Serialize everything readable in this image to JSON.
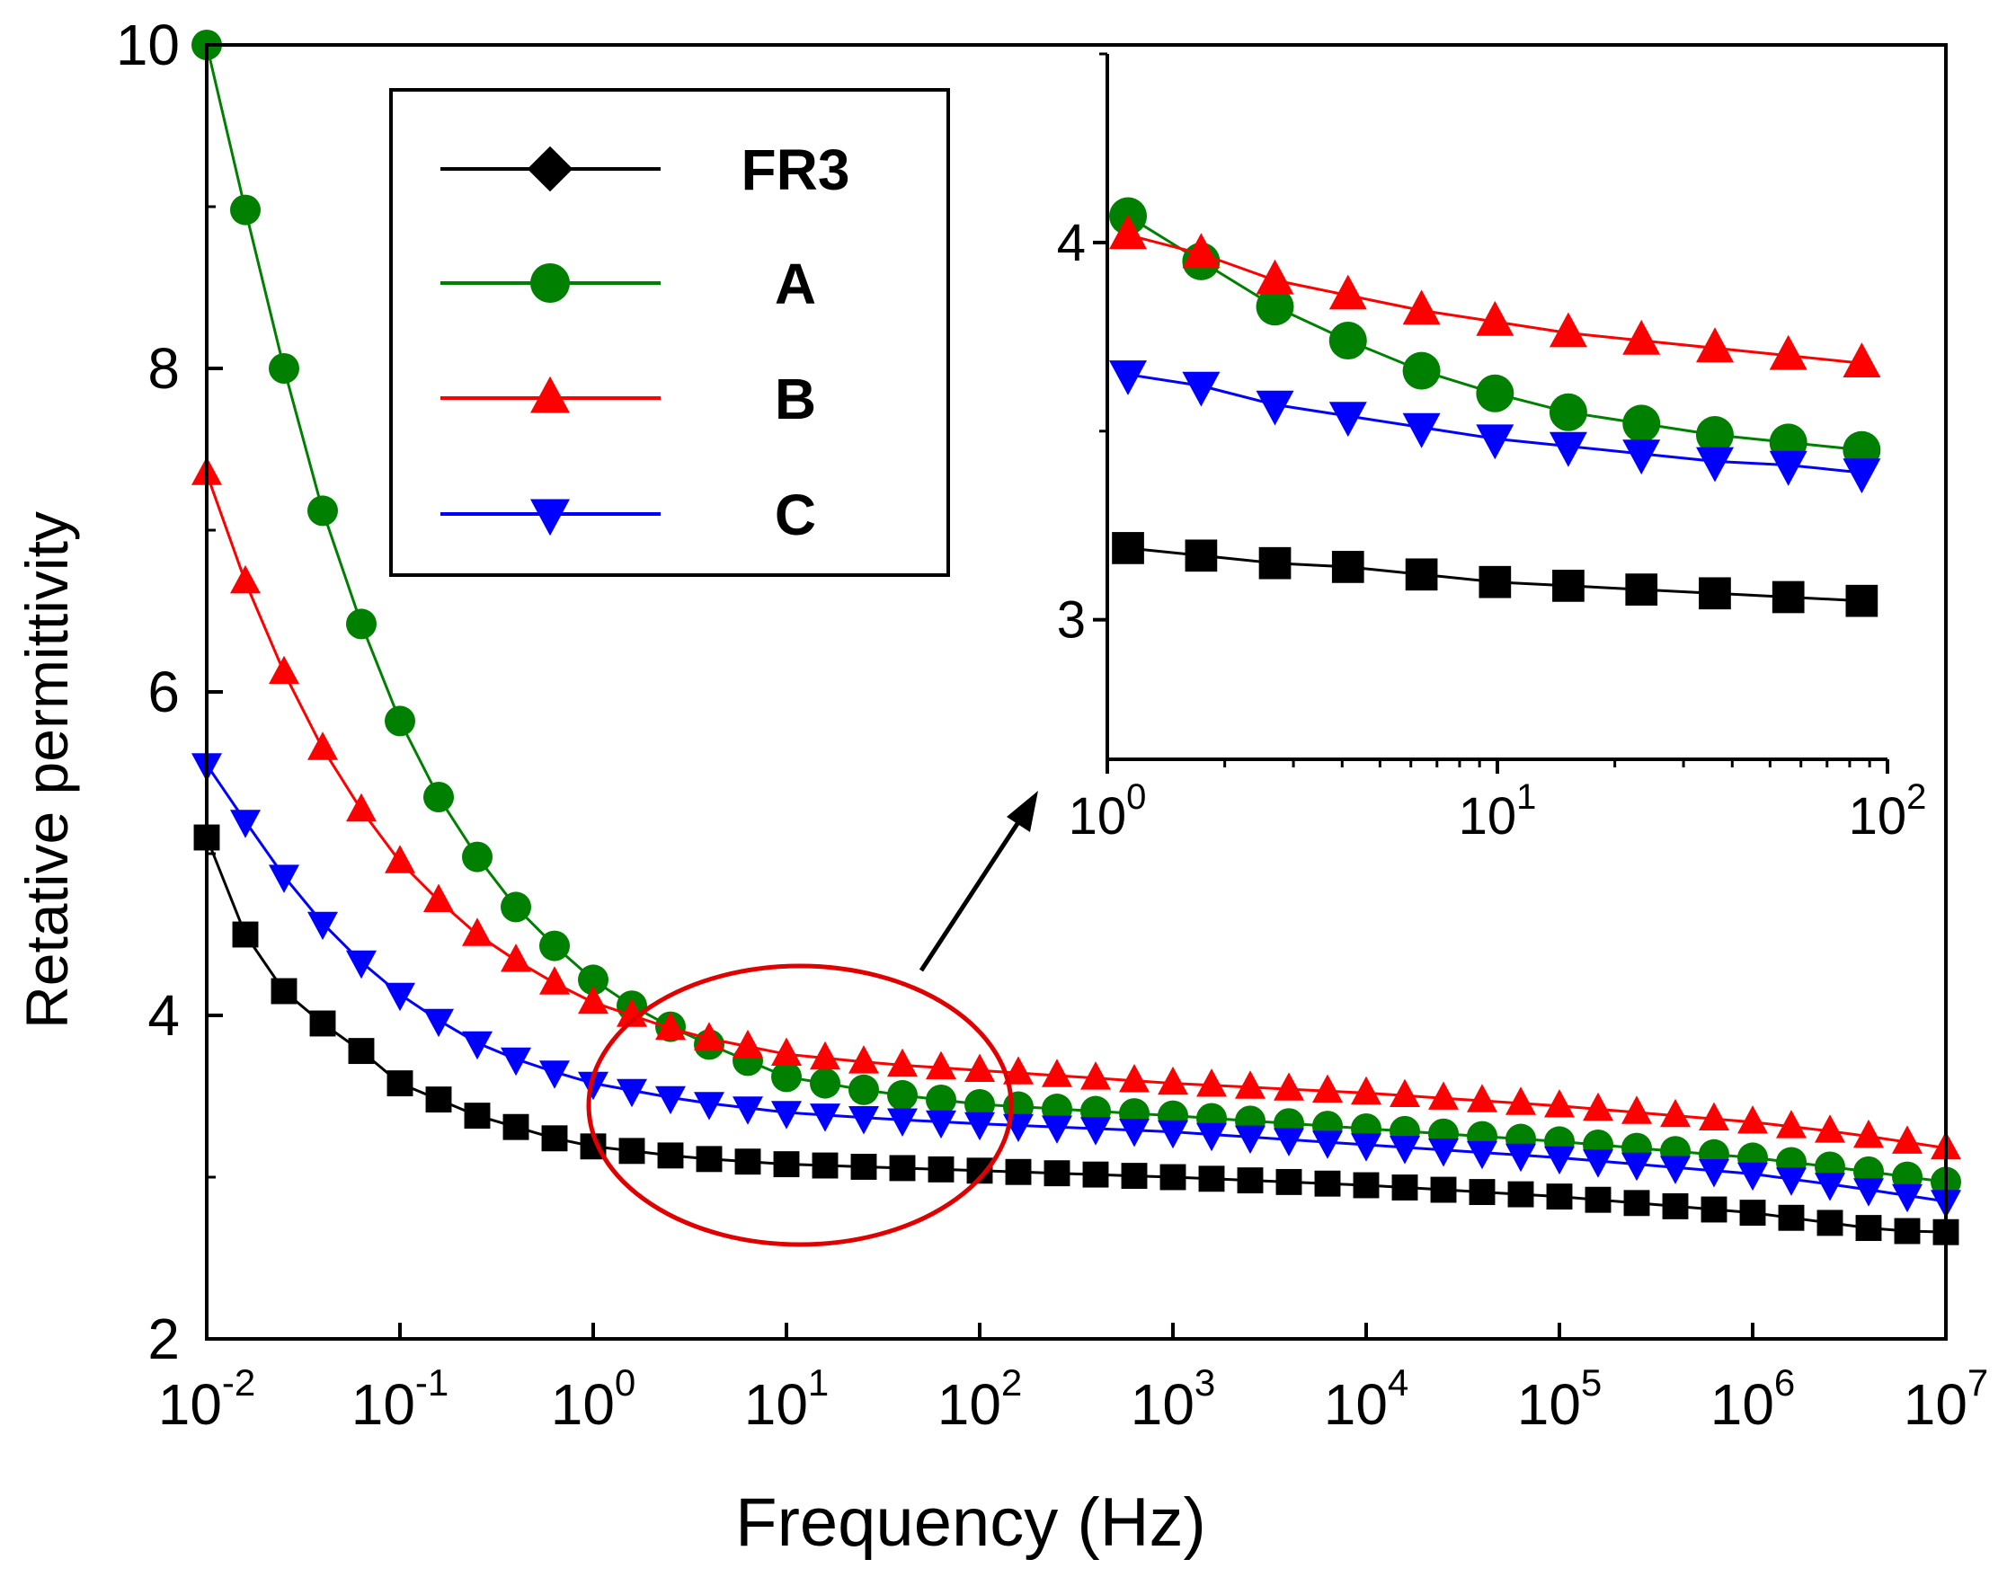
{
  "chart_data": [
    {
      "type": "line",
      "title": "",
      "xlabel": "Frequency (Hz)",
      "ylabel": "Retative permittivity",
      "xscale": "log",
      "xlim": [
        0.01,
        10000000
      ],
      "ylim": [
        2,
        10
      ],
      "yticks": [
        {
          "value": 2,
          "label": "2"
        },
        {
          "value": 4,
          "label": "4"
        },
        {
          "value": 6,
          "label": "6"
        },
        {
          "value": 8,
          "label": "8"
        },
        {
          "value": 10,
          "label": "10"
        }
      ],
      "xticks": [
        {
          "value": 0.01,
          "base": "10",
          "exp": "-2"
        },
        {
          "value": 0.1,
          "base": "10",
          "exp": "-1"
        },
        {
          "value": 1,
          "base": "10",
          "exp": "0"
        },
        {
          "value": 10,
          "base": "10",
          "exp": "1"
        },
        {
          "value": 100,
          "base": "10",
          "exp": "2"
        },
        {
          "value": 1000,
          "base": "10",
          "exp": "3"
        },
        {
          "value": 10000,
          "base": "10",
          "exp": "4"
        },
        {
          "value": 100000,
          "base": "10",
          "exp": "5"
        },
        {
          "value": 1000000,
          "base": "10",
          "exp": "6"
        },
        {
          "value": 10000000,
          "base": "10",
          "exp": "7"
        }
      ],
      "legend_position": "top-left",
      "series": [
        {
          "name": "FR3",
          "color": "#000000",
          "legend_marker": "diamond",
          "marker": "square",
          "anchors": [
            [
              -2,
              5.1
            ],
            [
              -1.8,
              4.5
            ],
            [
              -1.6,
              4.15
            ],
            [
              -1.4,
              3.95
            ],
            [
              -1.2,
              3.78
            ],
            [
              -1,
              3.58
            ],
            [
              -0.8,
              3.48
            ],
            [
              -0.6,
              3.38
            ],
            [
              -0.4,
              3.31
            ],
            [
              -0.2,
              3.24
            ],
            [
              0,
              3.19
            ],
            [
              0.5,
              3.12
            ],
            [
              1,
              3.08
            ],
            [
              1.5,
              3.06
            ],
            [
              2,
              3.04
            ],
            [
              3,
              3.0
            ],
            [
              4,
              2.95
            ],
            [
              5,
              2.88
            ],
            [
              6,
              2.78
            ],
            [
              6.7,
              2.67
            ],
            [
              7,
              2.66
            ]
          ]
        },
        {
          "name": "A",
          "color": "#008000",
          "legend_marker": "circle",
          "marker": "circle",
          "anchors": [
            [
              -2,
              10
            ],
            [
              -1.8,
              8.98
            ],
            [
              -1.6,
              8.0
            ],
            [
              -1.4,
              7.12
            ],
            [
              -1.2,
              6.42
            ],
            [
              -1,
              5.82
            ],
            [
              -0.8,
              5.35
            ],
            [
              -0.6,
              4.98
            ],
            [
              -0.4,
              4.67
            ],
            [
              -0.2,
              4.43
            ],
            [
              0,
              4.22
            ],
            [
              0.2,
              4.06
            ],
            [
              0.4,
              3.93
            ],
            [
              0.6,
              3.82
            ],
            [
              1,
              3.62
            ],
            [
              1.5,
              3.52
            ],
            [
              2,
              3.45
            ],
            [
              3,
              3.38
            ],
            [
              4,
              3.3
            ],
            [
              5,
              3.22
            ],
            [
              6,
              3.12
            ],
            [
              6.5,
              3.05
            ],
            [
              7,
              2.97
            ]
          ]
        },
        {
          "name": "B",
          "color": "#ff0000",
          "legend_marker": "triangle-up",
          "marker": "triangle-up",
          "anchors": [
            [
              -2,
              7.35
            ],
            [
              -1.8,
              6.68
            ],
            [
              -1.6,
              6.12
            ],
            [
              -1.4,
              5.65
            ],
            [
              -1.2,
              5.27
            ],
            [
              -1,
              4.95
            ],
            [
              -0.8,
              4.71
            ],
            [
              -0.6,
              4.5
            ],
            [
              -0.4,
              4.34
            ],
            [
              -0.2,
              4.2
            ],
            [
              0,
              4.08
            ],
            [
              0.5,
              3.88
            ],
            [
              1,
              3.76
            ],
            [
              1.5,
              3.7
            ],
            [
              2,
              3.66
            ],
            [
              3,
              3.58
            ],
            [
              4,
              3.52
            ],
            [
              5,
              3.44
            ],
            [
              6,
              3.34
            ],
            [
              6.5,
              3.27
            ],
            [
              7,
              3.18
            ]
          ]
        },
        {
          "name": "C",
          "color": "#0000ff",
          "legend_marker": "triangle-down",
          "marker": "triangle-down",
          "anchors": [
            [
              -2,
              5.55
            ],
            [
              -1.8,
              5.2
            ],
            [
              -1.6,
              4.86
            ],
            [
              -1.4,
              4.57
            ],
            [
              -1.2,
              4.33
            ],
            [
              -1,
              4.13
            ],
            [
              -0.8,
              3.97
            ],
            [
              -0.6,
              3.83
            ],
            [
              -0.4,
              3.73
            ],
            [
              -0.2,
              3.65
            ],
            [
              0,
              3.58
            ],
            [
              0.5,
              3.47
            ],
            [
              1,
              3.4
            ],
            [
              1.5,
              3.36
            ],
            [
              2,
              3.33
            ],
            [
              3,
              3.28
            ],
            [
              4,
              3.2
            ],
            [
              5,
              3.12
            ],
            [
              6,
              3.02
            ],
            [
              6.5,
              2.94
            ],
            [
              7,
              2.85
            ]
          ]
        }
      ],
      "annotation": "red ellipse highlighting 10^0 to 10^2 region with arrow pointing to inset"
    },
    {
      "type": "line",
      "title": "",
      "xlabel": "",
      "ylabel": "",
      "xscale": "log",
      "xlim": [
        1,
        100
      ],
      "ylim": [
        2.63,
        4.5
      ],
      "yticks": [
        {
          "value": 3,
          "label": "3"
        },
        {
          "value": 4,
          "label": "4"
        }
      ],
      "xticks": [
        {
          "value": 1,
          "base": "10",
          "exp": "0"
        },
        {
          "value": 10,
          "base": "10",
          "exp": "1"
        },
        {
          "value": 100,
          "base": "10",
          "exp": "2"
        }
      ],
      "series": [
        {
          "name": "FR3",
          "color": "#000000",
          "marker": "square",
          "points": [
            [
              1.13,
              3.19
            ],
            [
              1.74,
              3.17
            ],
            [
              2.69,
              3.15
            ],
            [
              4.14,
              3.14
            ],
            [
              6.39,
              3.12
            ],
            [
              9.86,
              3.1
            ],
            [
              15.2,
              3.09
            ],
            [
              23.4,
              3.08
            ],
            [
              36.1,
              3.07
            ],
            [
              55.7,
              3.06
            ],
            [
              85.9,
              3.05
            ]
          ]
        },
        {
          "name": "A",
          "color": "#008000",
          "marker": "circle",
          "points": [
            [
              1.13,
              4.07
            ],
            [
              1.74,
              3.95
            ],
            [
              2.69,
              3.83
            ],
            [
              4.14,
              3.74
            ],
            [
              6.39,
              3.66
            ],
            [
              9.86,
              3.6
            ],
            [
              15.2,
              3.55
            ],
            [
              23.4,
              3.52
            ],
            [
              36.1,
              3.49
            ],
            [
              55.7,
              3.47
            ],
            [
              85.9,
              3.45
            ]
          ]
        },
        {
          "name": "B",
          "color": "#ff0000",
          "marker": "triangle-up",
          "points": [
            [
              1.13,
              4.02
            ],
            [
              1.74,
              3.97
            ],
            [
              2.69,
              3.9
            ],
            [
              4.14,
              3.86
            ],
            [
              6.39,
              3.82
            ],
            [
              9.86,
              3.79
            ],
            [
              15.2,
              3.76
            ],
            [
              23.4,
              3.74
            ],
            [
              36.1,
              3.72
            ],
            [
              55.7,
              3.7
            ],
            [
              85.9,
              3.68
            ]
          ]
        },
        {
          "name": "C",
          "color": "#0000ff",
          "marker": "triangle-down",
          "points": [
            [
              1.13,
              3.65
            ],
            [
              1.74,
              3.62
            ],
            [
              2.69,
              3.57
            ],
            [
              4.14,
              3.54
            ],
            [
              6.39,
              3.51
            ],
            [
              9.86,
              3.48
            ],
            [
              15.2,
              3.46
            ],
            [
              23.4,
              3.44
            ],
            [
              36.1,
              3.42
            ],
            [
              55.7,
              3.41
            ],
            [
              85.9,
              3.39
            ]
          ]
        }
      ]
    }
  ]
}
